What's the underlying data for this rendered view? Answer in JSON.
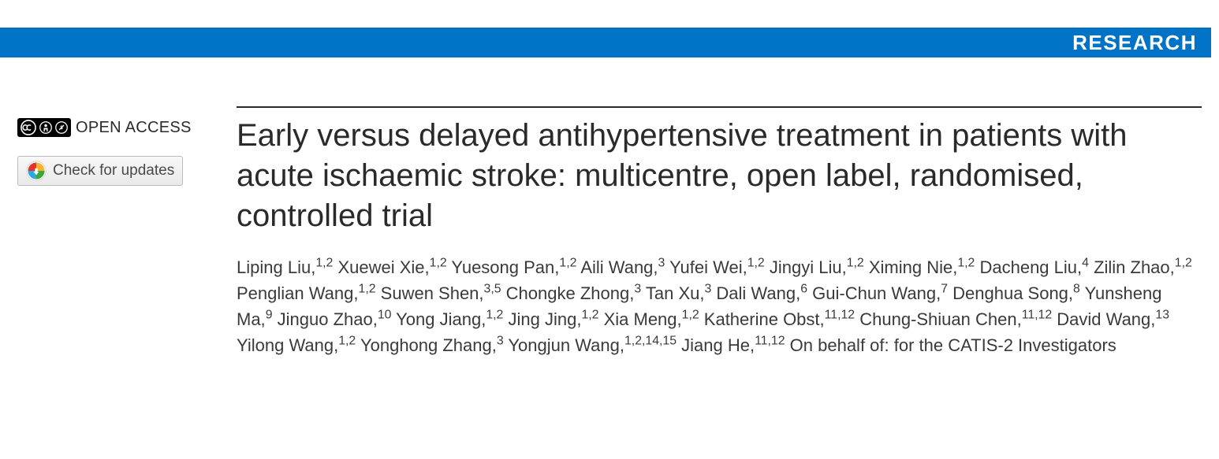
{
  "banner": {
    "label": "RESEARCH",
    "background_color": "#0073c7",
    "text_color": "#ffffff"
  },
  "sidebar": {
    "open_access_label": "OPEN ACCESS",
    "cc_symbols": [
      "cc",
      "by",
      "nc"
    ],
    "updates_label": "Check for updates"
  },
  "article": {
    "title": "Early versus delayed antihypertensive treatment in patients with acute ischaemic stroke: multicentre, open label, randomised, controlled trial",
    "authors": [
      {
        "name": "Liping Liu",
        "aff": "1,2"
      },
      {
        "name": "Xuewei Xie",
        "aff": "1,2"
      },
      {
        "name": "Yuesong Pan",
        "aff": "1,2"
      },
      {
        "name": "Aili Wang",
        "aff": "3"
      },
      {
        "name": "Yufei Wei",
        "aff": "1,2"
      },
      {
        "name": "Jingyi Liu",
        "aff": "1,2"
      },
      {
        "name": "Ximing Nie",
        "aff": "1,2"
      },
      {
        "name": "Dacheng Liu",
        "aff": "4"
      },
      {
        "name": "Zilin Zhao",
        "aff": "1,2"
      },
      {
        "name": "Penglian Wang",
        "aff": "1,2"
      },
      {
        "name": "Suwen Shen",
        "aff": "3,5"
      },
      {
        "name": "Chongke Zhong",
        "aff": "3"
      },
      {
        "name": "Tan Xu",
        "aff": "3"
      },
      {
        "name": "Dali Wang",
        "aff": "6"
      },
      {
        "name": "Gui-Chun Wang",
        "aff": "7"
      },
      {
        "name": "Denghua Song",
        "aff": "8"
      },
      {
        "name": "Yunsheng Ma",
        "aff": "9"
      },
      {
        "name": "Jinguo Zhao",
        "aff": "10"
      },
      {
        "name": "Yong Jiang",
        "aff": "1,2"
      },
      {
        "name": "Jing Jing",
        "aff": "1,2"
      },
      {
        "name": "Xia Meng",
        "aff": "1,2"
      },
      {
        "name": "Katherine Obst",
        "aff": "11,12"
      },
      {
        "name": "Chung-Shiuan Chen",
        "aff": "11,12"
      },
      {
        "name": "David Wang",
        "aff": "13"
      },
      {
        "name": "Yilong Wang",
        "aff": "1,2"
      },
      {
        "name": "Yonghong Zhang",
        "aff": "3"
      },
      {
        "name": "Yongjun Wang",
        "aff": "1,2,14,15"
      },
      {
        "name": "Jiang He",
        "aff": "11,12"
      }
    ],
    "group_author": "On behalf of: for the CATIS-2 Investigators",
    "title_fontsize": 40,
    "author_fontsize": 22,
    "text_color": "#2a2a2a"
  }
}
